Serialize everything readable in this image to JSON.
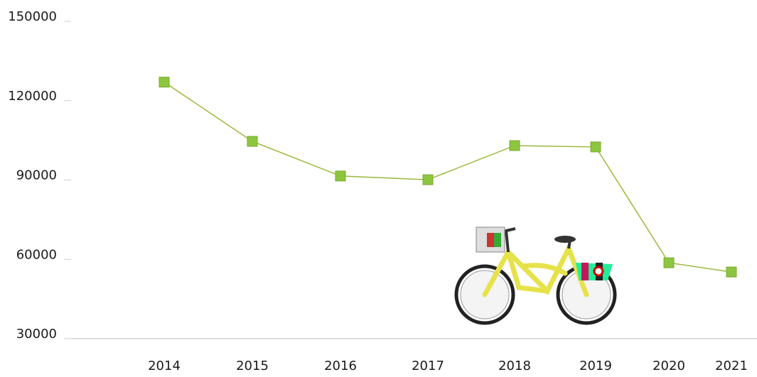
{
  "chart_data": {
    "type": "line",
    "categories": [
      "2014",
      "2015",
      "2016",
      "2017",
      "2018",
      "2019",
      "2020",
      "2021"
    ],
    "values": [
      127000,
      104600,
      91500,
      90100,
      103000,
      102500,
      58700,
      55200
    ],
    "color": "#8cc63f",
    "line_color": "#9bb83a",
    "ylim": [
      30000,
      150000
    ],
    "yticks": [
      30000,
      60000,
      90000,
      120000,
      150000
    ],
    "grid": false
  }
}
